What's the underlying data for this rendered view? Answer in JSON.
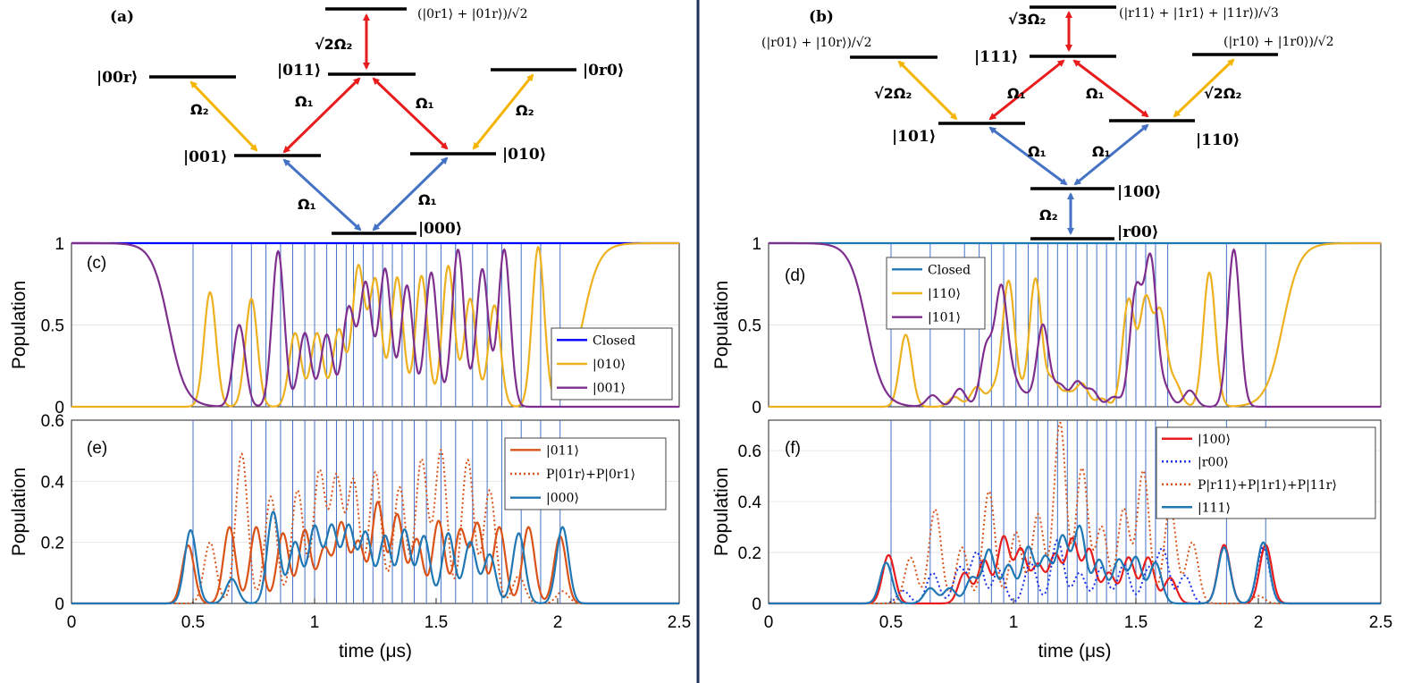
{
  "divider_color": "#1f2f5c",
  "colors": {
    "blue": "#0000ff",
    "teal": "#1f77b4",
    "orange": "#edb120",
    "purple": "#7e2f8e",
    "red": "#e81c1c",
    "brick": "#d95319",
    "dotblue": "#1a2fe8",
    "arrow_blue": "#4472c4",
    "arrow_red": "#e81c1c",
    "arrow_yellow": "#f4b400"
  },
  "diagram_a": {
    "panel_label": "(a)",
    "levels": [
      "|0r1⟩ + |01r⟩",
      "|011⟩",
      "|00r⟩",
      "|0r0⟩",
      "|001⟩",
      "|010⟩",
      "|000⟩"
    ],
    "top_label": "(|0r1⟩ + |01r⟩)/√2",
    "couplings": {
      "top": "√2Ω₂",
      "w1": "Ω₂",
      "w2": "Ω₂",
      "r1": "Ω₁",
      "r2": "Ω₁",
      "b1": "Ω₁",
      "b2": "Ω₁"
    }
  },
  "diagram_b": {
    "panel_label": "(b)",
    "top_label": "(|r11⟩ + |1r1⟩ + |11r⟩)/√3",
    "left_label": "(|r01⟩ + |10r⟩)/√2",
    "right_label": "(|r10⟩ + |1r0⟩)/√2",
    "levels": [
      "|111⟩",
      "|101⟩",
      "|110⟩",
      "|100⟩",
      "|r00⟩"
    ],
    "couplings": {
      "top": "√3Ω₂",
      "w1": "√2Ω₂",
      "w2": "√2Ω₂",
      "r1": "Ω₁",
      "r2": "Ω₁",
      "b1": "Ω₁",
      "b2": "Ω₁",
      "bottom": "Ω₂"
    }
  },
  "chart_data": [
    {
      "type": "line",
      "panel_label": "(c)",
      "ylabel": "Population",
      "xlabel": "",
      "xlim": [
        0,
        2.5
      ],
      "ylim": [
        0,
        1
      ],
      "yticks": [
        "0",
        "0.5",
        "1"
      ],
      "series": [
        {
          "name": "Closed",
          "color": "#0000ff",
          "style": "solid",
          "kind": "const",
          "value": 1.0
        },
        {
          "name": "|010⟩",
          "color": "#edb120",
          "style": "solid",
          "kind": "peaks",
          "edge": "right",
          "peaks": [
            [
              0.57,
              0.7
            ],
            [
              0.74,
              0.66
            ],
            [
              0.92,
              0.45
            ],
            [
              1.01,
              0.45
            ],
            [
              1.1,
              0.47
            ],
            [
              1.18,
              0.85
            ],
            [
              1.25,
              0.77
            ],
            [
              1.34,
              0.79
            ],
            [
              1.44,
              0.8
            ],
            [
              1.55,
              0.86
            ],
            [
              1.64,
              0.66
            ],
            [
              1.74,
              0.62
            ],
            [
              1.92,
              0.97
            ]
          ]
        },
        {
          "name": "|001⟩",
          "color": "#7e2f8e",
          "style": "solid",
          "kind": "peaks",
          "edge": "left",
          "peaks": [
            [
              0.69,
              0.5
            ],
            [
              0.85,
              0.95
            ],
            [
              0.96,
              0.45
            ],
            [
              1.05,
              0.44
            ],
            [
              1.14,
              0.6
            ],
            [
              1.21,
              0.75
            ],
            [
              1.29,
              0.84
            ],
            [
              1.38,
              0.74
            ],
            [
              1.48,
              0.82
            ],
            [
              1.59,
              0.96
            ],
            [
              1.69,
              0.84
            ],
            [
              1.78,
              0.96
            ]
          ]
        }
      ]
    },
    {
      "type": "line",
      "panel_label": "(d)",
      "ylabel": "Population",
      "xlabel": "",
      "xlim": [
        0,
        2.5
      ],
      "ylim": [
        0,
        1
      ],
      "yticks": [
        "0",
        "0.5",
        "1"
      ],
      "series": [
        {
          "name": "Closed",
          "color": "#1f77b4",
          "style": "solid",
          "kind": "const",
          "value": 1.0
        },
        {
          "name": "|110⟩",
          "color": "#edb120",
          "style": "solid",
          "kind": "peaks",
          "edge": "right",
          "peaks": [
            [
              0.56,
              0.44
            ],
            [
              0.76,
              0.06
            ],
            [
              0.85,
              0.12
            ],
            [
              0.92,
              0.1
            ],
            [
              0.98,
              0.76
            ],
            [
              1.03,
              0.04
            ],
            [
              1.09,
              0.78
            ],
            [
              1.16,
              0.16
            ],
            [
              1.22,
              0.08
            ],
            [
              1.28,
              0.14
            ],
            [
              1.36,
              0.05
            ],
            [
              1.47,
              0.65
            ],
            [
              1.54,
              0.64
            ],
            [
              1.6,
              0.56
            ],
            [
              1.66,
              0.14
            ],
            [
              1.8,
              0.82
            ]
          ]
        },
        {
          "name": "|101⟩",
          "color": "#7e2f8e",
          "style": "solid",
          "kind": "peaks",
          "edge": "left",
          "peaks": [
            [
              0.67,
              0.07
            ],
            [
              0.78,
              0.11
            ],
            [
              0.89,
              0.36
            ],
            [
              0.95,
              0.71
            ],
            [
              1.0,
              0.14
            ],
            [
              1.05,
              0.06
            ],
            [
              1.12,
              0.5
            ],
            [
              1.19,
              0.13
            ],
            [
              1.26,
              0.15
            ],
            [
              1.32,
              0.1
            ],
            [
              1.41,
              0.06
            ],
            [
              1.5,
              0.7
            ],
            [
              1.56,
              0.89
            ],
            [
              1.62,
              0.1
            ],
            [
              1.72,
              0.1
            ],
            [
              1.9,
              0.96
            ]
          ]
        }
      ]
    },
    {
      "type": "line",
      "panel_label": "(e)",
      "ylabel": "Population",
      "xlabel": "time (μs)",
      "xlim": [
        0,
        2.5
      ],
      "ylim": [
        0,
        0.6
      ],
      "xticks": [
        "0",
        "0.5",
        "1",
        "1.5",
        "2",
        "2.5"
      ],
      "yticks": [
        "0",
        "0.2",
        "0.4",
        "0.6"
      ],
      "series": [
        {
          "name": "|011⟩",
          "color": "#d95319",
          "style": "solid",
          "kind": "peaks",
          "peaks": [
            [
              0.48,
              0.19
            ],
            [
              0.65,
              0.25
            ],
            [
              0.76,
              0.25
            ],
            [
              0.87,
              0.23
            ],
            [
              0.96,
              0.24
            ],
            [
              1.04,
              0.18
            ],
            [
              1.11,
              0.26
            ],
            [
              1.18,
              0.2
            ],
            [
              1.26,
              0.33
            ],
            [
              1.34,
              0.29
            ],
            [
              1.42,
              0.21
            ],
            [
              1.51,
              0.27
            ],
            [
              1.6,
              0.24
            ],
            [
              1.67,
              0.26
            ],
            [
              1.76,
              0.25
            ],
            [
              1.88,
              0.25
            ],
            [
              2.01,
              0.22
            ]
          ]
        },
        {
          "name": "P|01r⟩+P|0r1⟩",
          "color": "#d95319",
          "style": "dotted",
          "kind": "peaks",
          "peaks": [
            [
              0.57,
              0.2
            ],
            [
              0.7,
              0.49
            ],
            [
              0.82,
              0.35
            ],
            [
              0.93,
              0.37
            ],
            [
              1.02,
              0.43
            ],
            [
              1.09,
              0.41
            ],
            [
              1.16,
              0.4
            ],
            [
              1.25,
              0.43
            ],
            [
              1.35,
              0.38
            ],
            [
              1.44,
              0.47
            ],
            [
              1.52,
              0.5
            ],
            [
              1.63,
              0.47
            ],
            [
              1.72,
              0.37
            ],
            [
              1.84,
              0.09
            ],
            [
              2.02,
              0.04
            ]
          ]
        },
        {
          "name": "|000⟩",
          "color": "#1f77b4",
          "style": "solid",
          "kind": "peaks",
          "peaks": [
            [
              0.49,
              0.24
            ],
            [
              0.66,
              0.08
            ],
            [
              0.83,
              0.3
            ],
            [
              0.92,
              0.2
            ],
            [
              1.0,
              0.25
            ],
            [
              1.07,
              0.25
            ],
            [
              1.14,
              0.25
            ],
            [
              1.21,
              0.23
            ],
            [
              1.29,
              0.22
            ],
            [
              1.37,
              0.24
            ],
            [
              1.45,
              0.22
            ],
            [
              1.55,
              0.23
            ],
            [
              1.64,
              0.2
            ],
            [
              1.72,
              0.16
            ],
            [
              1.84,
              0.23
            ],
            [
              2.02,
              0.25
            ]
          ]
        }
      ]
    },
    {
      "type": "line",
      "panel_label": "(f)",
      "ylabel": "Population",
      "xlabel": "time (μs)",
      "xlim": [
        0,
        2.5
      ],
      "ylim": [
        0,
        0.72
      ],
      "xticks": [
        "0",
        "0.5",
        "1",
        "1.5",
        "2",
        "2.5"
      ],
      "yticks": [
        "0",
        "0.2",
        "0.4",
        "0.6"
      ],
      "series": [
        {
          "name": "|100⟩",
          "color": "#e81c1c",
          "style": "solid",
          "kind": "peaks",
          "peaks": [
            [
              0.49,
              0.19
            ],
            [
              0.8,
              0.12
            ],
            [
              0.88,
              0.17
            ],
            [
              0.96,
              0.26
            ],
            [
              1.03,
              0.21
            ],
            [
              1.1,
              0.15
            ],
            [
              1.17,
              0.19
            ],
            [
              1.24,
              0.25
            ],
            [
              1.31,
              0.21
            ],
            [
              1.39,
              0.12
            ],
            [
              1.47,
              0.18
            ],
            [
              1.55,
              0.18
            ],
            [
              1.64,
              0.1
            ],
            [
              1.86,
              0.23
            ],
            [
              2.03,
              0.23
            ]
          ]
        },
        {
          "name": "|r00⟩",
          "color": "#1a2fe8",
          "style": "dotted",
          "kind": "peaks",
          "peaks": [
            [
              0.55,
              0.05
            ],
            [
              0.67,
              0.12
            ],
            [
              0.78,
              0.14
            ],
            [
              0.85,
              0.2
            ],
            [
              0.94,
              0.13
            ],
            [
              1.07,
              0.16
            ],
            [
              1.18,
              0.25
            ],
            [
              1.27,
              0.12
            ],
            [
              1.36,
              0.14
            ],
            [
              1.45,
              0.15
            ],
            [
              1.55,
              0.13
            ],
            [
              1.61,
              0.21
            ],
            [
              1.7,
              0.11
            ],
            [
              1.86,
              0.22
            ],
            [
              2.02,
              0.22
            ]
          ]
        },
        {
          "name": "P|r11⟩+P|1r1⟩+P|11r⟩",
          "color": "#d95319",
          "style": "dotted",
          "kind": "peaks",
          "peaks": [
            [
              0.58,
              0.18
            ],
            [
              0.68,
              0.37
            ],
            [
              0.79,
              0.22
            ],
            [
              0.9,
              0.44
            ],
            [
              1.01,
              0.28
            ],
            [
              1.1,
              0.35
            ],
            [
              1.19,
              0.71
            ],
            [
              1.28,
              0.53
            ],
            [
              1.36,
              0.3
            ],
            [
              1.45,
              0.37
            ],
            [
              1.53,
              0.52
            ],
            [
              1.64,
              0.38
            ],
            [
              1.73,
              0.24
            ],
            [
              2.0,
              0.03
            ]
          ]
        },
        {
          "name": "|111⟩",
          "color": "#1f77b4",
          "style": "solid",
          "kind": "peaks",
          "peaks": [
            [
              0.48,
              0.16
            ],
            [
              0.66,
              0.06
            ],
            [
              0.74,
              0.06
            ],
            [
              0.83,
              0.1
            ],
            [
              0.9,
              0.21
            ],
            [
              0.98,
              0.15
            ],
            [
              1.06,
              0.22
            ],
            [
              1.13,
              0.18
            ],
            [
              1.2,
              0.26
            ],
            [
              1.27,
              0.3
            ],
            [
              1.35,
              0.17
            ],
            [
              1.43,
              0.17
            ],
            [
              1.5,
              0.18
            ],
            [
              1.58,
              0.16
            ],
            [
              1.86,
              0.22
            ],
            [
              2.02,
              0.24
            ]
          ]
        }
      ]
    }
  ],
  "vlines_left": [
    0.5,
    0.66,
    0.74,
    0.8,
    0.86,
    0.91,
    0.96,
    1.0,
    1.05,
    1.09,
    1.13,
    1.16,
    1.2,
    1.24,
    1.28,
    1.32,
    1.36,
    1.41,
    1.46,
    1.52,
    1.58,
    1.65,
    1.71,
    1.77,
    1.85,
    1.93,
    2.01
  ],
  "vlines_right": [
    0.5,
    0.66,
    0.8,
    0.86,
    0.91,
    0.96,
    1.01,
    1.06,
    1.1,
    1.14,
    1.18,
    1.22,
    1.26,
    1.3,
    1.34,
    1.38,
    1.42,
    1.46,
    1.5,
    1.54,
    1.58,
    1.63,
    1.87,
    2.03
  ]
}
